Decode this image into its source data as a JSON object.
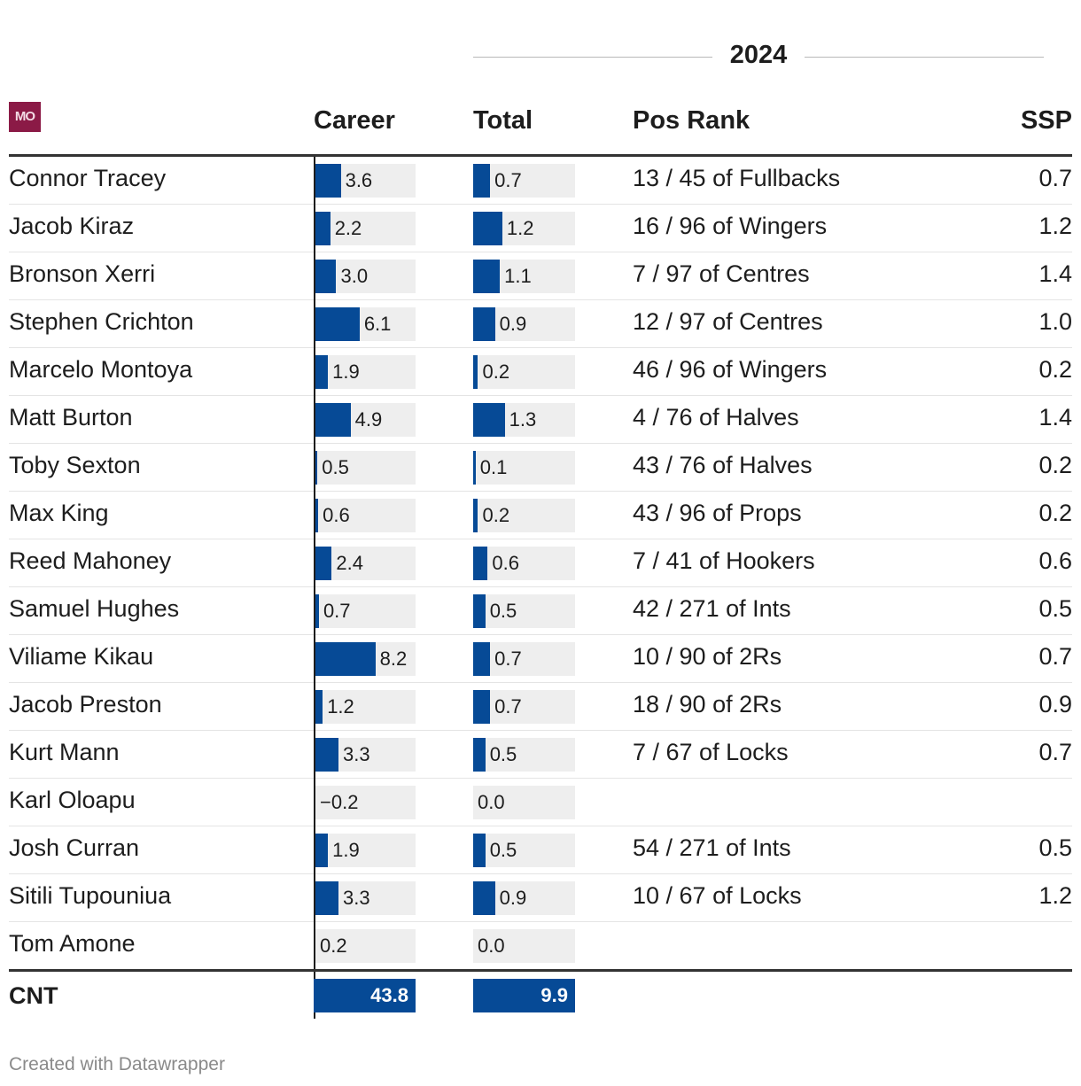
{
  "group_label": "2024",
  "logo_text": "MO",
  "columns": {
    "career": "Career",
    "total": "Total",
    "pos_rank": "Pos Rank",
    "ssp": "SSP"
  },
  "colors": {
    "bar": "#064a96",
    "bar_background": "#eeeeee",
    "logo": "#8b1a46"
  },
  "chart_data": {
    "type": "table",
    "career_range": [
      -0.5,
      13.3
    ],
    "total_range": [
      0,
      4.2
    ],
    "rows": [
      {
        "name": "Connor Tracey",
        "career": 3.6,
        "career_label": "3.6",
        "total": 0.7,
        "total_label": "0.7",
        "pos_rank": "13 / 45 of Fullbacks",
        "ssp": "0.7"
      },
      {
        "name": "Jacob Kiraz",
        "career": 2.2,
        "career_label": "2.2",
        "total": 1.2,
        "total_label": "1.2",
        "pos_rank": "16 / 96 of Wingers",
        "ssp": "1.2"
      },
      {
        "name": "Bronson Xerri",
        "career": 3.0,
        "career_label": "3.0",
        "total": 1.1,
        "total_label": "1.1",
        "pos_rank": "7 / 97 of Centres",
        "ssp": "1.4"
      },
      {
        "name": "Stephen Crichton",
        "career": 6.1,
        "career_label": "6.1",
        "total": 0.9,
        "total_label": "0.9",
        "pos_rank": "12 / 97 of Centres",
        "ssp": "1.0"
      },
      {
        "name": "Marcelo Montoya",
        "career": 1.9,
        "career_label": "1.9",
        "total": 0.2,
        "total_label": "0.2",
        "pos_rank": "46 / 96 of Wingers",
        "ssp": "0.2"
      },
      {
        "name": "Matt Burton",
        "career": 4.9,
        "career_label": "4.9",
        "total": 1.3,
        "total_label": "1.3",
        "pos_rank": "4 / 76 of Halves",
        "ssp": "1.4"
      },
      {
        "name": "Toby Sexton",
        "career": 0.5,
        "career_label": "0.5",
        "total": 0.1,
        "total_label": "0.1",
        "pos_rank": "43 / 76 of Halves",
        "ssp": "0.2"
      },
      {
        "name": "Max King",
        "career": 0.6,
        "career_label": "0.6",
        "total": 0.2,
        "total_label": "0.2",
        "pos_rank": "43 / 96 of Props",
        "ssp": "0.2"
      },
      {
        "name": "Reed Mahoney",
        "career": 2.4,
        "career_label": "2.4",
        "total": 0.6,
        "total_label": "0.6",
        "pos_rank": "7 / 41 of Hookers",
        "ssp": "0.6"
      },
      {
        "name": "Samuel Hughes",
        "career": 0.7,
        "career_label": "0.7",
        "total": 0.5,
        "total_label": "0.5",
        "pos_rank": "42 / 271 of Ints",
        "ssp": "0.5"
      },
      {
        "name": "Viliame Kikau",
        "career": 8.2,
        "career_label": "8.2",
        "total": 0.7,
        "total_label": "0.7",
        "pos_rank": "10 / 90 of 2Rs",
        "ssp": "0.7"
      },
      {
        "name": "Jacob Preston",
        "career": 1.2,
        "career_label": "1.2",
        "total": 0.7,
        "total_label": "0.7",
        "pos_rank": "18 / 90 of 2Rs",
        "ssp": "0.9"
      },
      {
        "name": "Kurt Mann",
        "career": 3.3,
        "career_label": "3.3",
        "total": 0.5,
        "total_label": "0.5",
        "pos_rank": "7 / 67 of Locks",
        "ssp": "0.7"
      },
      {
        "name": "Karl Oloapu",
        "career": -0.2,
        "career_label": "−0.2",
        "total": 0.0,
        "total_label": "0.0",
        "pos_rank": "",
        "ssp": ""
      },
      {
        "name": "Josh Curran",
        "career": 1.9,
        "career_label": "1.9",
        "total": 0.5,
        "total_label": "0.5",
        "pos_rank": "54 / 271 of Ints",
        "ssp": "0.5"
      },
      {
        "name": "Sitili Tupouniua",
        "career": 3.3,
        "career_label": "3.3",
        "total": 0.9,
        "total_label": "0.9",
        "pos_rank": "10 / 67 of Locks",
        "ssp": "1.2"
      },
      {
        "name": "Tom Amone",
        "career": 0.2,
        "career_label": "0.2",
        "total": 0.0,
        "total_label": "0.0",
        "pos_rank": "",
        "ssp": ""
      }
    ],
    "totals": {
      "name": "CNT",
      "career": "43.8",
      "total": "9.9"
    }
  },
  "footer": "Created with Datawrapper"
}
